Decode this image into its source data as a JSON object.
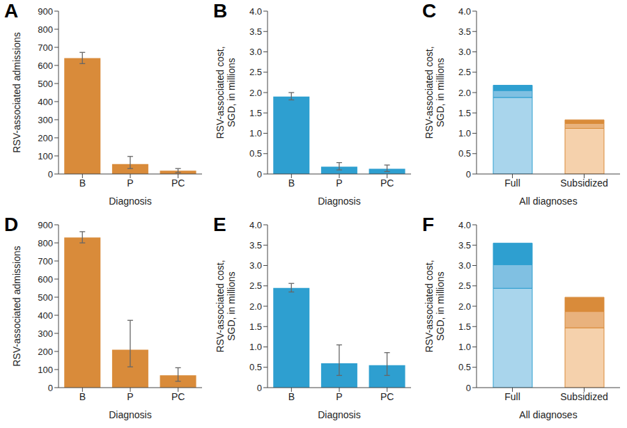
{
  "chart_data": [
    {
      "panel": "A",
      "type": "bar",
      "categories": [
        "B",
        "P",
        "PC"
      ],
      "values": [
        640,
        55,
        18
      ],
      "error_bars": [
        [
          610,
          672
        ],
        [
          30,
          97
        ],
        [
          8,
          30
        ]
      ],
      "color": "#D98B3A",
      "x_label": "Diagnosis",
      "y_label": "RSV-associated admissions",
      "ylim": [
        0,
        900
      ],
      "yticks": [
        0,
        100,
        200,
        300,
        400,
        500,
        600,
        700,
        800,
        900
      ],
      "grid": false
    },
    {
      "panel": "B",
      "type": "bar",
      "categories": [
        "B",
        "P",
        "PC"
      ],
      "values": [
        1.9,
        0.18,
        0.13
      ],
      "error_bars": [
        [
          1.82,
          2.0
        ],
        [
          0.1,
          0.28
        ],
        [
          0.06,
          0.22
        ]
      ],
      "color": "#2E9FD0",
      "x_label": "Diagnosis",
      "y_label": "RSV-associated cost, SGD, in millions",
      "ylim": [
        0,
        4
      ],
      "yticks": [
        0,
        0.5,
        {
          "value": 1,
          "label": "1.0"
        },
        1.5,
        {
          "value": 2,
          "label": "2.0"
        },
        2.5,
        {
          "value": 3,
          "label": "3.0"
        },
        3.5,
        {
          "value": 4,
          "label": "4.0"
        }
      ],
      "grid": false
    },
    {
      "panel": "C",
      "type": "bar",
      "stacked": true,
      "categories": [
        "Full",
        "Subsidized"
      ],
      "series": [
        {
          "colors": [
            "#A9D5EC",
            "#F5D1AC"
          ],
          "values": [
            1.88,
            1.12
          ]
        },
        {
          "colors": [
            "#80C0E2",
            "#E9B27D"
          ],
          "values": [
            0.17,
            0.12
          ]
        },
        {
          "colors": [
            "#2E9FD0",
            "#D98B3A"
          ],
          "values": [
            0.13,
            0.09
          ]
        }
      ],
      "x_label": "All diagnoses",
      "y_label": "RSV-associated cost, SGD, in millions",
      "ylim": [
        0,
        4
      ],
      "yticks": [
        0,
        0.5,
        {
          "value": 1,
          "label": "1.0"
        },
        1.5,
        {
          "value": 2,
          "label": "2.0"
        },
        2.5,
        {
          "value": 3,
          "label": "3.0"
        },
        3.5,
        {
          "value": 4,
          "label": "4.0"
        }
      ],
      "grid": false
    },
    {
      "panel": "D",
      "type": "bar",
      "categories": [
        "B",
        "P",
        "PC"
      ],
      "values": [
        830,
        210,
        68
      ],
      "error_bars": [
        [
          800,
          862
        ],
        [
          115,
          372
        ],
        [
          35,
          110
        ]
      ],
      "color": "#D98B3A",
      "x_label": "Diagnosis",
      "y_label": "RSV-associated admissions",
      "ylim": [
        0,
        900
      ],
      "yticks": [
        0,
        100,
        200,
        300,
        400,
        500,
        600,
        700,
        800,
        900
      ],
      "grid": false
    },
    {
      "panel": "E",
      "type": "bar",
      "categories": [
        "B",
        "P",
        "PC"
      ],
      "values": [
        2.45,
        0.6,
        0.55
      ],
      "error_bars": [
        [
          2.35,
          2.56
        ],
        [
          0.3,
          1.05
        ],
        [
          0.3,
          0.86
        ]
      ],
      "color": "#2E9FD0",
      "x_label": "Diagnosis",
      "y_label": "RSV-associated cost, SGD, in millions",
      "ylim": [
        0,
        4
      ],
      "yticks": [
        0,
        0.5,
        {
          "value": 1,
          "label": "1.0"
        },
        1.5,
        {
          "value": 2,
          "label": "2.0"
        },
        2.5,
        {
          "value": 3,
          "label": "3.0"
        },
        3.5,
        {
          "value": 4,
          "label": "4.0"
        }
      ],
      "grid": false
    },
    {
      "panel": "F",
      "type": "bar",
      "stacked": true,
      "categories": [
        "Full",
        "Subsidized"
      ],
      "series": [
        {
          "colors": [
            "#A9D5EC",
            "#F5D1AC"
          ],
          "values": [
            2.44,
            1.47
          ]
        },
        {
          "colors": [
            "#80C0E2",
            "#E9B27D"
          ],
          "values": [
            0.58,
            0.4
          ]
        },
        {
          "colors": [
            "#2E9FD0",
            "#D98B3A"
          ],
          "values": [
            0.53,
            0.35
          ]
        }
      ],
      "x_label": "All diagnoses",
      "y_label": "RSV-associated cost, SGD, in millions",
      "ylim": [
        0,
        4
      ],
      "yticks": [
        0,
        0.5,
        {
          "value": 1,
          "label": "1.0"
        },
        1.5,
        {
          "value": 2,
          "label": "2.0"
        },
        2.5,
        {
          "value": 3,
          "label": "3.0"
        },
        3.5,
        {
          "value": 4,
          "label": "4.0"
        }
      ],
      "grid": false
    }
  ]
}
